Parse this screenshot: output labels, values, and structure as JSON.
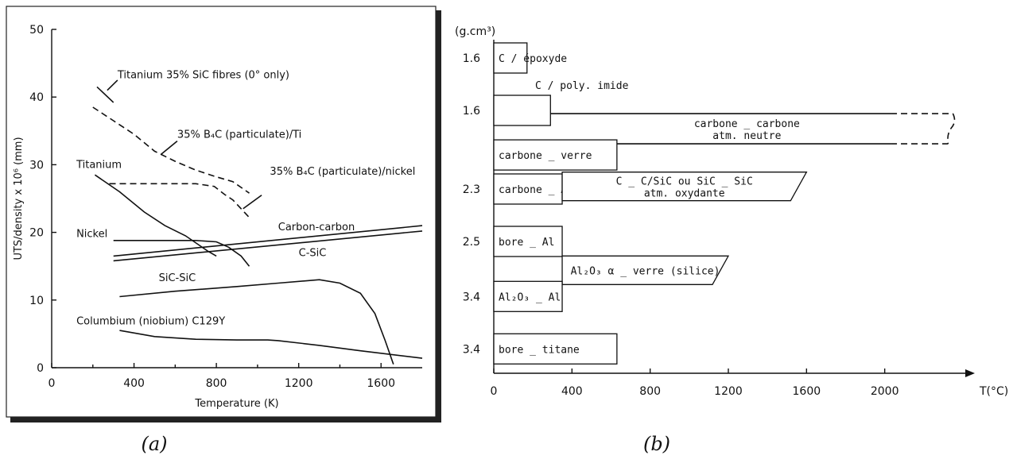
{
  "chart_data": [
    {
      "type": "line",
      "caption": "(a)",
      "xlabel": "Temperature (K)",
      "ylabel": "UTS/density x 10⁶ (mm)",
      "xlim": [
        0,
        1800
      ],
      "ylim": [
        0,
        50
      ],
      "x_tick_labels": [
        "0",
        "400",
        "800",
        "1200",
        "1600"
      ],
      "x_ticks": [
        0,
        400,
        800,
        1200,
        1600
      ],
      "y_ticks": [
        0,
        10,
        20,
        30,
        40,
        50
      ],
      "y_tick_labels": [
        "0",
        "10",
        "20",
        "30",
        "40",
        "50"
      ],
      "series": [
        {
          "name": "Titanium 35% SiC fibres (0° only)",
          "style": "solid",
          "points": [
            [
              220,
              41.5
            ],
            [
              300,
              39.2
            ]
          ],
          "label_at": [
            320,
            42.8
          ]
        },
        {
          "name": "35% B₄C (particulate)/Ti",
          "style": "dashed",
          "points": [
            [
              200,
              38.5
            ],
            [
              300,
              36.5
            ],
            [
              400,
              34.5
            ],
            [
              500,
              32
            ],
            [
              600,
              30.5
            ],
            [
              700,
              29.2
            ],
            [
              800,
              28.2
            ],
            [
              880,
              27.5
            ],
            [
              960,
              25.8
            ]
          ],
          "label_at": [
            610,
            34
          ]
        },
        {
          "name": "Titanium",
          "style": "solid",
          "points": [
            [
              210,
              28.5
            ],
            [
              330,
              26
            ],
            [
              450,
              23
            ],
            [
              550,
              21
            ],
            [
              650,
              19.5
            ],
            [
              760,
              17.2
            ],
            [
              800,
              16.5
            ]
          ],
          "label_at": [
            120,
            29.5
          ]
        },
        {
          "name": "35% B₄C (particulate)/nickel",
          "style": "dashed",
          "points": [
            [
              280,
              27.2
            ],
            [
              500,
              27.2
            ],
            [
              700,
              27.2
            ],
            [
              790,
              26.8
            ],
            [
              840,
              25.6
            ],
            [
              880,
              24.8
            ],
            [
              920,
              23.5
            ],
            [
              960,
              22.2
            ]
          ],
          "label_at": [
            1060,
            28.5
          ]
        },
        {
          "name": "Nickel",
          "style": "solid",
          "points": [
            [
              300,
              18.8
            ],
            [
              500,
              18.8
            ],
            [
              700,
              18.8
            ],
            [
              800,
              18.6
            ],
            [
              860,
              17.8
            ],
            [
              920,
              16.5
            ],
            [
              960,
              15
            ]
          ],
          "label_at": [
            120,
            19.3
          ]
        },
        {
          "name": "Carbon-carbon",
          "style": "solid",
          "points": [
            [
              300,
              16.5
            ],
            [
              1800,
              21
            ]
          ],
          "label_at": [
            1100,
            20.3
          ]
        },
        {
          "name": "C-SiC",
          "style": "solid",
          "points": [
            [
              300,
              15.8
            ],
            [
              1800,
              20.2
            ]
          ],
          "label_at": [
            1200,
            16.5
          ]
        },
        {
          "name": "SiC-SiC",
          "style": "solid",
          "points": [
            [
              330,
              10.5
            ],
            [
              600,
              11.3
            ],
            [
              900,
              12
            ],
            [
              1100,
              12.5
            ],
            [
              1300,
              13
            ],
            [
              1400,
              12.5
            ],
            [
              1500,
              11
            ],
            [
              1570,
              8
            ],
            [
              1620,
              4
            ],
            [
              1660,
              0.5
            ]
          ],
          "label_at": [
            520,
            12.8
          ]
        },
        {
          "name": "Columbium (niobium) C129Y",
          "style": "solid",
          "points": [
            [
              330,
              5.5
            ],
            [
              500,
              4.6
            ],
            [
              700,
              4.2
            ],
            [
              900,
              4.1
            ],
            [
              1050,
              4.1
            ],
            [
              1100,
              4
            ],
            [
              1300,
              3.3
            ],
            [
              1500,
              2.5
            ],
            [
              1800,
              1.4
            ]
          ],
          "label_at": [
            120,
            6.4
          ]
        }
      ]
    },
    {
      "type": "bar",
      "orientation": "horizontal",
      "caption": "(b)",
      "xlabel": "T(°C)",
      "ylabel": "(g.cm³)",
      "xlim": [
        0,
        2400
      ],
      "x_ticks": [
        0,
        400,
        800,
        1200,
        1600,
        2000
      ],
      "x_tick_labels": [
        "0",
        "400",
        "800",
        "1200",
        "1600",
        "2000"
      ],
      "density_labels": [
        "1.6",
        "1.6",
        "2.3",
        "2.5",
        "3.4",
        "3.4"
      ],
      "bars": [
        {
          "label": "C / époxyde",
          "start": 0,
          "end": 170,
          "row": 0,
          "shape": "rect",
          "label_pos": "inside"
        },
        {
          "label": "C / poly. imide",
          "start": 0,
          "end": 290,
          "row": 1,
          "shape": "rect",
          "label_pos": "above"
        },
        {
          "label": "carbone _ carbone",
          "label2": "atm. neutre",
          "start": 290,
          "end": 2300,
          "row": 1.35,
          "shape": "open-dashed",
          "label_pos": "inside"
        },
        {
          "label": "carbone _ verre",
          "start": 0,
          "end": 630,
          "row": 1.85,
          "shape": "rect",
          "label_pos": "inside"
        },
        {
          "label": "carbone _ Al",
          "start": 0,
          "end": 350,
          "row": 2.5,
          "shape": "rect",
          "label_pos": "inside"
        },
        {
          "label": "C _ C/SiC ou SiC _ SiC",
          "label2": "atm. oxydante",
          "start": 350,
          "end": 1600,
          "row": 2.45,
          "shape": "parallelogram",
          "label_pos": "inside"
        },
        {
          "label": "bore _ Al",
          "start": 0,
          "end": 350,
          "row": 3.5,
          "shape": "rect",
          "label_pos": "inside"
        },
        {
          "label": "Al₂O₃ α _ verre (silice)",
          "start": 350,
          "end": 1200,
          "row": 4.05,
          "shape": "parallelogram",
          "label_pos": "inside"
        },
        {
          "label": "Al₂O₃ _ Al",
          "start": 0,
          "end": 350,
          "row": 4.55,
          "shape": "rect",
          "label_pos": "inside"
        },
        {
          "label": "bore _ titane",
          "start": 0,
          "end": 630,
          "row": 5.55,
          "shape": "rect",
          "label_pos": "inside"
        }
      ]
    }
  ]
}
